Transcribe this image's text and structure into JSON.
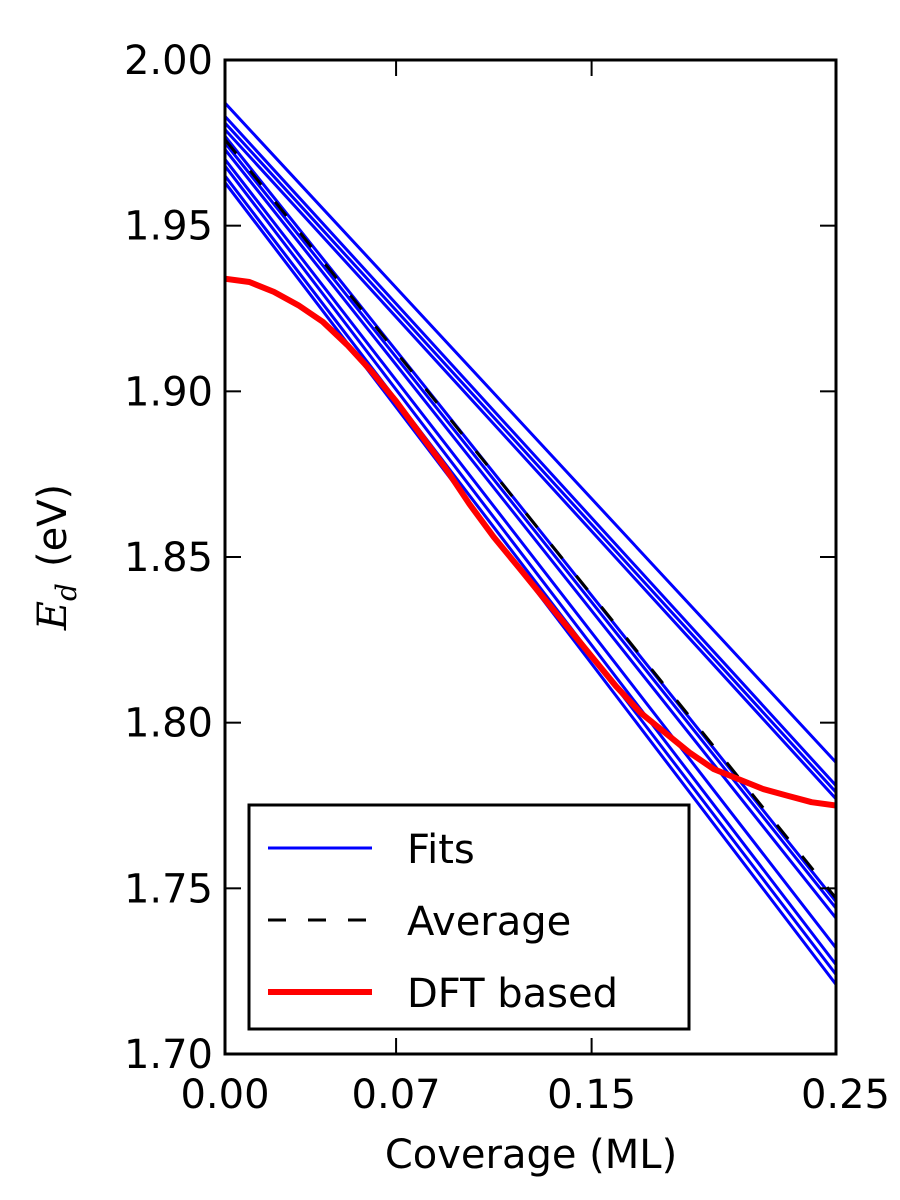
{
  "chart_data": {
    "type": "line",
    "title": "",
    "xlabel": "Coverage (ML)",
    "ylabel": {
      "symbol": "E",
      "subscript": "d",
      "unit": "(eV)"
    },
    "xlim": [
      0,
      0.25
    ],
    "ylim": [
      1.7,
      2.0
    ],
    "xticks": [
      0,
      0.07,
      0.15,
      0.25
    ],
    "xtick_labels": [
      "0.00",
      "0.07",
      "0.15",
      "0.25"
    ],
    "yticks": [
      1.7,
      1.75,
      1.8,
      1.85,
      1.9,
      1.95,
      2.0
    ],
    "ytick_labels": [
      "1.70",
      "1.75",
      "1.80",
      "1.85",
      "1.90",
      "1.95",
      "2.00"
    ],
    "grid": false,
    "legend_position": "bottom-left",
    "series": [
      {
        "name": "Fits",
        "style": "solid",
        "color": "#0000ff",
        "kind": "lines",
        "lines": [
          [
            [
              0,
              1.987
            ],
            [
              0.25,
              1.788
            ]
          ],
          [
            [
              0,
              1.983
            ],
            [
              0.25,
              1.781
            ]
          ],
          [
            [
              0,
              1.981
            ],
            [
              0.25,
              1.779
            ]
          ],
          [
            [
              0,
              1.979
            ],
            [
              0.25,
              1.777
            ]
          ],
          [
            [
              0,
              1.977
            ],
            [
              0.25,
              1.746
            ]
          ],
          [
            [
              0,
              1.975
            ],
            [
              0.25,
              1.744
            ]
          ],
          [
            [
              0,
              1.973
            ],
            [
              0.25,
              1.741
            ]
          ],
          [
            [
              0,
              1.97
            ],
            [
              0.25,
              1.732
            ]
          ],
          [
            [
              0,
              1.968
            ],
            [
              0.25,
              1.727
            ]
          ],
          [
            [
              0,
              1.965
            ],
            [
              0.25,
              1.724
            ]
          ],
          [
            [
              0,
              1.963
            ],
            [
              0.25,
              1.721
            ]
          ]
        ]
      },
      {
        "name": "Average",
        "style": "dashed",
        "color": "#000000",
        "kind": "line",
        "points": [
          [
            0,
            1.976
          ],
          [
            0.25,
            1.747
          ]
        ]
      },
      {
        "name": "DFT based",
        "style": "solid-thick",
        "color": "#ff0000",
        "kind": "curve",
        "points": [
          [
            0.0,
            1.934
          ],
          [
            0.01,
            1.933
          ],
          [
            0.02,
            1.93
          ],
          [
            0.03,
            1.926
          ],
          [
            0.04,
            1.921
          ],
          [
            0.05,
            1.914
          ],
          [
            0.06,
            1.906
          ],
          [
            0.07,
            1.897
          ],
          [
            0.08,
            1.887
          ],
          [
            0.09,
            1.877
          ],
          [
            0.1,
            1.866
          ],
          [
            0.11,
            1.856
          ],
          [
            0.12,
            1.847
          ],
          [
            0.13,
            1.838
          ],
          [
            0.14,
            1.829
          ],
          [
            0.15,
            1.82
          ],
          [
            0.16,
            1.811
          ],
          [
            0.17,
            1.803
          ],
          [
            0.18,
            1.797
          ],
          [
            0.19,
            1.791
          ],
          [
            0.2,
            1.786
          ],
          [
            0.21,
            1.783
          ],
          [
            0.22,
            1.78
          ],
          [
            0.23,
            1.778
          ],
          [
            0.24,
            1.776
          ],
          [
            0.25,
            1.775
          ]
        ]
      }
    ]
  }
}
